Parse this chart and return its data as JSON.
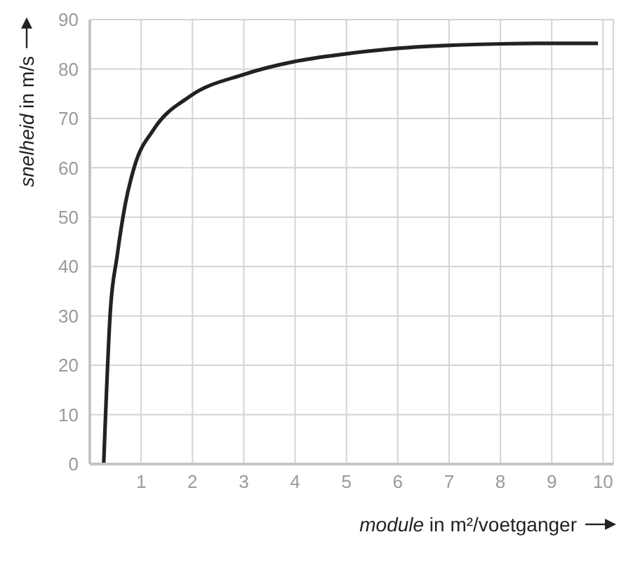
{
  "chart_data": {
    "type": "line",
    "xlabel": "module in m²/voetganger",
    "ylabel": "snelheid in m/s",
    "x": [
      0.27,
      0.4,
      0.53,
      0.69,
      0.88,
      1.24,
      1.94,
      3.0,
      3.98,
      5.01,
      6.01,
      7.03,
      8.05,
      9.06,
      9.9
    ],
    "series": [
      {
        "color": "#222222",
        "values": [
          0,
          31,
          42,
          52.6,
          60.6,
          67.7,
          74.4,
          78.9,
          81.5,
          83.1,
          84.2,
          84.8,
          85.1,
          85.2,
          85.2
        ]
      }
    ],
    "xlim": [
      0,
      10.2
    ],
    "xticks": [
      1,
      2,
      3,
      4,
      5,
      6,
      7,
      8,
      9,
      10
    ],
    "ylim": [
      0,
      90
    ],
    "yticks": [
      0,
      10,
      20,
      30,
      40,
      50,
      60,
      70,
      80,
      90
    ],
    "grid": true,
    "marker": "none",
    "line_style": "solid"
  }
}
